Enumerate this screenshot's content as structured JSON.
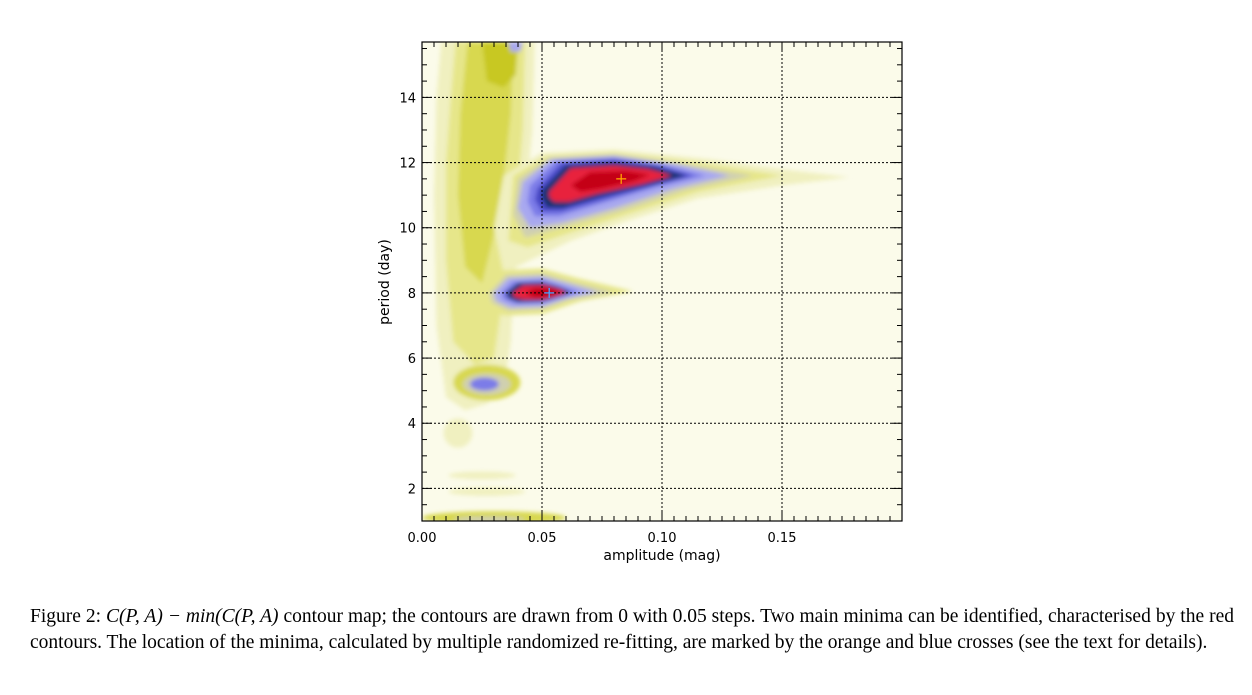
{
  "chart_data": {
    "type": "heatmap",
    "title": "",
    "xlabel": "amplitude (mag)",
    "ylabel": "period (day)",
    "xlim": [
      0.0,
      0.2
    ],
    "ylim": [
      1.0,
      15.7
    ],
    "x_ticks": [
      {
        "value": 0.0,
        "label": "0.00"
      },
      {
        "value": 0.05,
        "label": "0.05"
      },
      {
        "value": 0.1,
        "label": "0.10"
      },
      {
        "value": 0.15,
        "label": "0.15"
      }
    ],
    "y_ticks": [
      {
        "value": 2,
        "label": "2"
      },
      {
        "value": 4,
        "label": "4"
      },
      {
        "value": 6,
        "label": "6"
      },
      {
        "value": 8,
        "label": "8"
      },
      {
        "value": 10,
        "label": "10"
      },
      {
        "value": 12,
        "label": "12"
      },
      {
        "value": 14,
        "label": "14"
      }
    ],
    "grid": true,
    "contour_step": 0.05,
    "contour_start": 0,
    "color_scale": [
      "#c40018",
      "#e8203c",
      "#16306e",
      "#4848c8",
      "#7c7ce8",
      "#a8a8f0",
      "#d0d0b0",
      "#b8b800",
      "#c8c820",
      "#d8d850",
      "#e6e68a",
      "#f0f0c0",
      "#fbfbea"
    ],
    "minima": [
      {
        "name": "orange",
        "amplitude": 0.083,
        "period": 11.5,
        "color": "#ffa500"
      },
      {
        "name": "blue",
        "amplitude": 0.053,
        "period": 8.0,
        "color": "#4aa3ff"
      }
    ]
  },
  "caption": {
    "prefix": "Figure 2: ",
    "formula": "C(P, A) − min(C(P, A)",
    "text": " contour map; the contours are drawn from 0 with 0.05 steps. Two main minima can be identified, characterised by the red contours. The location of the minima, calculated by multiple randomized re-fitting, are marked by the orange and blue crosses (see the text for details)."
  }
}
